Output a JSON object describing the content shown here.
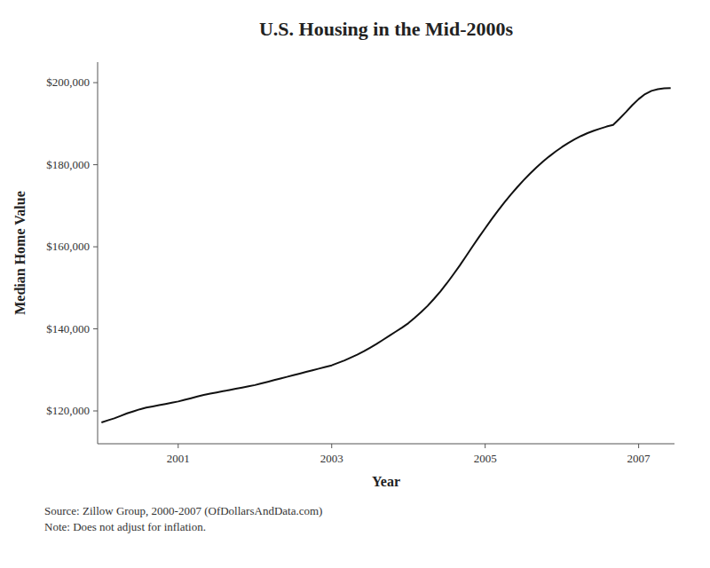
{
  "chart_data": {
    "type": "line",
    "title": "U.S. Housing in the Mid-2000s",
    "x_label": "Year",
    "y_label": "Median Home Value",
    "annotations": [
      "Source:  Zillow Group, 2000-2007 (OfDollarsAndData.com)\nNote:  Does not adjust for inflation."
    ],
    "color": "#111111",
    "grid": false,
    "xlim": [
      1999.95,
      2007.467
    ],
    "xticks": [
      2001,
      2003,
      2005,
      2007
    ],
    "ylim": [
      112000,
      205000
    ],
    "yticks": [
      {
        "value": 120000,
        "label": "$120,000"
      },
      {
        "value": 140000,
        "label": "$140,000"
      },
      {
        "value": 160000,
        "label": "$160,000"
      },
      {
        "value": 180000,
        "label": "$180,000"
      },
      {
        "value": 200000,
        "label": "$200,000"
      }
    ],
    "x": [
      2000.0,
      2000.083,
      2000.167,
      2000.25,
      2000.333,
      2000.417,
      2000.5,
      2000.583,
      2000.667,
      2000.75,
      2000.833,
      2000.917,
      2001.0,
      2001.083,
      2001.167,
      2001.25,
      2001.333,
      2001.417,
      2001.5,
      2001.583,
      2001.667,
      2001.75,
      2001.833,
      2001.917,
      2002.0,
      2002.083,
      2002.167,
      2002.25,
      2002.333,
      2002.417,
      2002.5,
      2002.583,
      2002.667,
      2002.75,
      2002.833,
      2002.917,
      2003.0,
      2003.083,
      2003.167,
      2003.25,
      2003.333,
      2003.417,
      2003.5,
      2003.583,
      2003.667,
      2003.75,
      2003.833,
      2003.917,
      2004.0,
      2004.083,
      2004.167,
      2004.25,
      2004.333,
      2004.417,
      2004.5,
      2004.583,
      2004.667,
      2004.75,
      2004.833,
      2004.917,
      2005.0,
      2005.083,
      2005.167,
      2005.25,
      2005.333,
      2005.417,
      2005.5,
      2005.583,
      2005.667,
      2005.75,
      2005.833,
      2005.917,
      2006.0,
      2006.083,
      2006.167,
      2006.25,
      2006.333,
      2006.417,
      2006.5,
      2006.583,
      2006.667,
      2006.75,
      2006.833,
      2006.917,
      2007.0,
      2007.083,
      2007.167,
      2007.25,
      2007.333,
      2007.417
    ],
    "values": [
      117200,
      117700,
      118200,
      118800,
      119400,
      119900,
      120400,
      120800,
      121100,
      121400,
      121700,
      122000,
      122300,
      122700,
      123100,
      123500,
      123900,
      124200,
      124500,
      124800,
      125100,
      125400,
      125700,
      126000,
      126300,
      126700,
      127100,
      127500,
      127900,
      128300,
      128700,
      129100,
      129500,
      129900,
      130300,
      130700,
      131100,
      131700,
      132300,
      133000,
      133700,
      134500,
      135400,
      136300,
      137300,
      138300,
      139300,
      140300,
      141400,
      142700,
      144100,
      145600,
      147300,
      149100,
      151100,
      153200,
      155400,
      157700,
      160000,
      162300,
      164500,
      166700,
      168800,
      170800,
      172700,
      174500,
      176200,
      177800,
      179300,
      180700,
      182000,
      183200,
      184300,
      185300,
      186200,
      187000,
      187700,
      188300,
      188800,
      189300,
      189700,
      191200,
      192800,
      194500,
      196000,
      197200,
      198000,
      198400,
      198600,
      198700
    ]
  }
}
